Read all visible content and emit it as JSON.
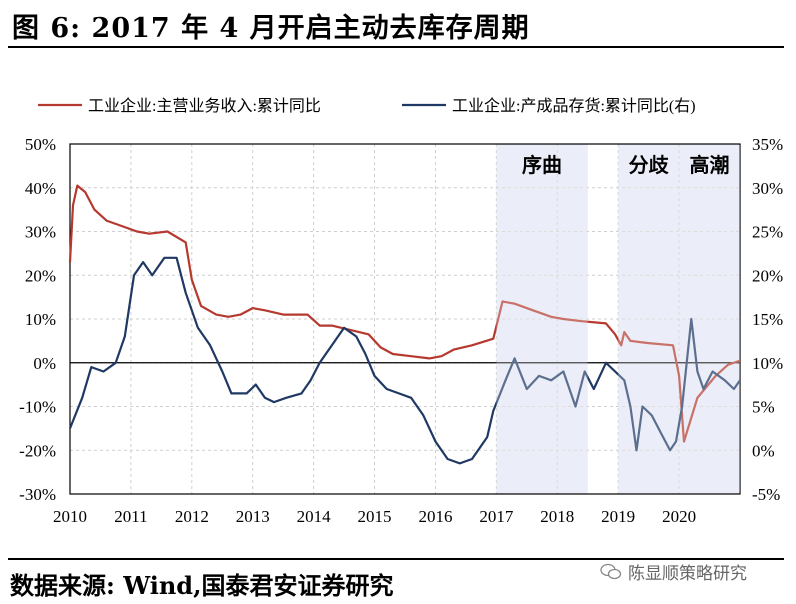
{
  "figure": {
    "title": "图 6:  2017 年 4 月开启主动去库存周期",
    "source": "数据来源:  Wind,国泰君安证券研究",
    "watermark": "陈显顺策略研究"
  },
  "chart_data": {
    "type": "line",
    "title": "",
    "xlabel": "",
    "ylabel": "",
    "x_range": [
      2010.0,
      2021.0
    ],
    "x_ticks": [
      "2010",
      "2011",
      "2012",
      "2013",
      "2014",
      "2015",
      "2016",
      "2017",
      "2018",
      "2019",
      "2020"
    ],
    "ylim_left": [
      -30,
      50
    ],
    "yticks_left": [
      "50%",
      "40%",
      "30%",
      "20%",
      "10%",
      "0%",
      "-10%",
      "-20%",
      "-30%"
    ],
    "ylim_right": [
      -5,
      35
    ],
    "yticks_right": [
      "35%",
      "30%",
      "25%",
      "20%",
      "15%",
      "10%",
      "5%",
      "0%",
      "-5%"
    ],
    "grid": true,
    "legend_position": "top",
    "shaded_regions": [
      {
        "from": 2017.0,
        "to": 2018.5,
        "label": "序曲"
      },
      {
        "from": 2019.0,
        "to": 2020.0,
        "label": "分歧"
      },
      {
        "from": 2020.0,
        "to": 2021.0,
        "label": "高潮"
      }
    ],
    "series": [
      {
        "name": "工业企业:主营业务收入:累计同比",
        "color": "#b5392e",
        "axis": "left",
        "points": [
          [
            2010.0,
            23
          ],
          [
            2010.05,
            36
          ],
          [
            2010.12,
            40.5
          ],
          [
            2010.25,
            39
          ],
          [
            2010.4,
            35
          ],
          [
            2010.6,
            32.5
          ],
          [
            2010.9,
            31
          ],
          [
            2011.1,
            30
          ],
          [
            2011.3,
            29.5
          ],
          [
            2011.6,
            30
          ],
          [
            2011.9,
            27.5
          ],
          [
            2012.0,
            19
          ],
          [
            2012.15,
            13
          ],
          [
            2012.4,
            11
          ],
          [
            2012.6,
            10.5
          ],
          [
            2012.8,
            11
          ],
          [
            2013.0,
            12.5
          ],
          [
            2013.2,
            12
          ],
          [
            2013.5,
            11
          ],
          [
            2013.9,
            11
          ],
          [
            2014.1,
            8.5
          ],
          [
            2014.3,
            8.5
          ],
          [
            2014.6,
            7.5
          ],
          [
            2014.9,
            6.5
          ],
          [
            2015.1,
            3.5
          ],
          [
            2015.3,
            2
          ],
          [
            2015.6,
            1.5
          ],
          [
            2015.9,
            1
          ],
          [
            2016.1,
            1.5
          ],
          [
            2016.3,
            3
          ],
          [
            2016.6,
            4
          ],
          [
            2016.95,
            5.5
          ],
          [
            2017.1,
            14
          ],
          [
            2017.3,
            13.5
          ],
          [
            2017.6,
            12
          ],
          [
            2017.9,
            10.5
          ],
          [
            2018.1,
            10
          ],
          [
            2018.4,
            9.5
          ],
          [
            2018.8,
            9
          ],
          [
            2018.95,
            6.5
          ],
          [
            2019.05,
            4
          ],
          [
            2019.1,
            7
          ],
          [
            2019.2,
            5
          ],
          [
            2019.5,
            4.5
          ],
          [
            2019.9,
            4
          ],
          [
            2020.0,
            -3
          ],
          [
            2020.08,
            -18
          ],
          [
            2020.3,
            -8
          ],
          [
            2020.6,
            -3
          ],
          [
            2020.8,
            -0.5
          ],
          [
            2021.0,
            0.5
          ]
        ]
      },
      {
        "name": "工业企业:产成品存货:累计同比(右)",
        "color": "#1f3864",
        "axis": "right",
        "points": [
          [
            2010.0,
            2.5
          ],
          [
            2010.2,
            6
          ],
          [
            2010.35,
            9.5
          ],
          [
            2010.55,
            9
          ],
          [
            2010.75,
            10
          ],
          [
            2010.9,
            13
          ],
          [
            2011.05,
            20
          ],
          [
            2011.2,
            21.5
          ],
          [
            2011.35,
            20
          ],
          [
            2011.55,
            22
          ],
          [
            2011.75,
            22
          ],
          [
            2011.9,
            18
          ],
          [
            2012.1,
            14
          ],
          [
            2012.3,
            12
          ],
          [
            2012.5,
            9
          ],
          [
            2012.65,
            6.5
          ],
          [
            2012.9,
            6.5
          ],
          [
            2013.05,
            7.5
          ],
          [
            2013.2,
            6
          ],
          [
            2013.35,
            5.5
          ],
          [
            2013.55,
            6
          ],
          [
            2013.8,
            6.5
          ],
          [
            2013.95,
            8
          ],
          [
            2014.1,
            10
          ],
          [
            2014.3,
            12
          ],
          [
            2014.5,
            14
          ],
          [
            2014.7,
            13
          ],
          [
            2014.85,
            11
          ],
          [
            2015.0,
            8.5
          ],
          [
            2015.2,
            7
          ],
          [
            2015.4,
            6.5
          ],
          [
            2015.6,
            6
          ],
          [
            2015.8,
            4
          ],
          [
            2016.0,
            1
          ],
          [
            2016.2,
            -1
          ],
          [
            2016.4,
            -1.5
          ],
          [
            2016.6,
            -1
          ],
          [
            2016.85,
            1.5
          ],
          [
            2016.95,
            4.5
          ],
          [
            2017.15,
            8
          ],
          [
            2017.3,
            10.5
          ],
          [
            2017.5,
            7
          ],
          [
            2017.7,
            8.5
          ],
          [
            2017.9,
            8
          ],
          [
            2018.1,
            9
          ],
          [
            2018.3,
            5
          ],
          [
            2018.45,
            9
          ],
          [
            2018.6,
            7
          ],
          [
            2018.8,
            10
          ],
          [
            2018.95,
            9
          ],
          [
            2019.1,
            8
          ],
          [
            2019.2,
            5
          ],
          [
            2019.3,
            0
          ],
          [
            2019.4,
            5
          ],
          [
            2019.55,
            4
          ],
          [
            2019.7,
            2
          ],
          [
            2019.85,
            0
          ],
          [
            2019.95,
            1
          ],
          [
            2020.05,
            5
          ],
          [
            2020.2,
            15
          ],
          [
            2020.3,
            9
          ],
          [
            2020.4,
            7
          ],
          [
            2020.55,
            9
          ],
          [
            2020.75,
            8
          ],
          [
            2020.9,
            7
          ],
          [
            2021.0,
            8
          ]
        ]
      }
    ]
  }
}
